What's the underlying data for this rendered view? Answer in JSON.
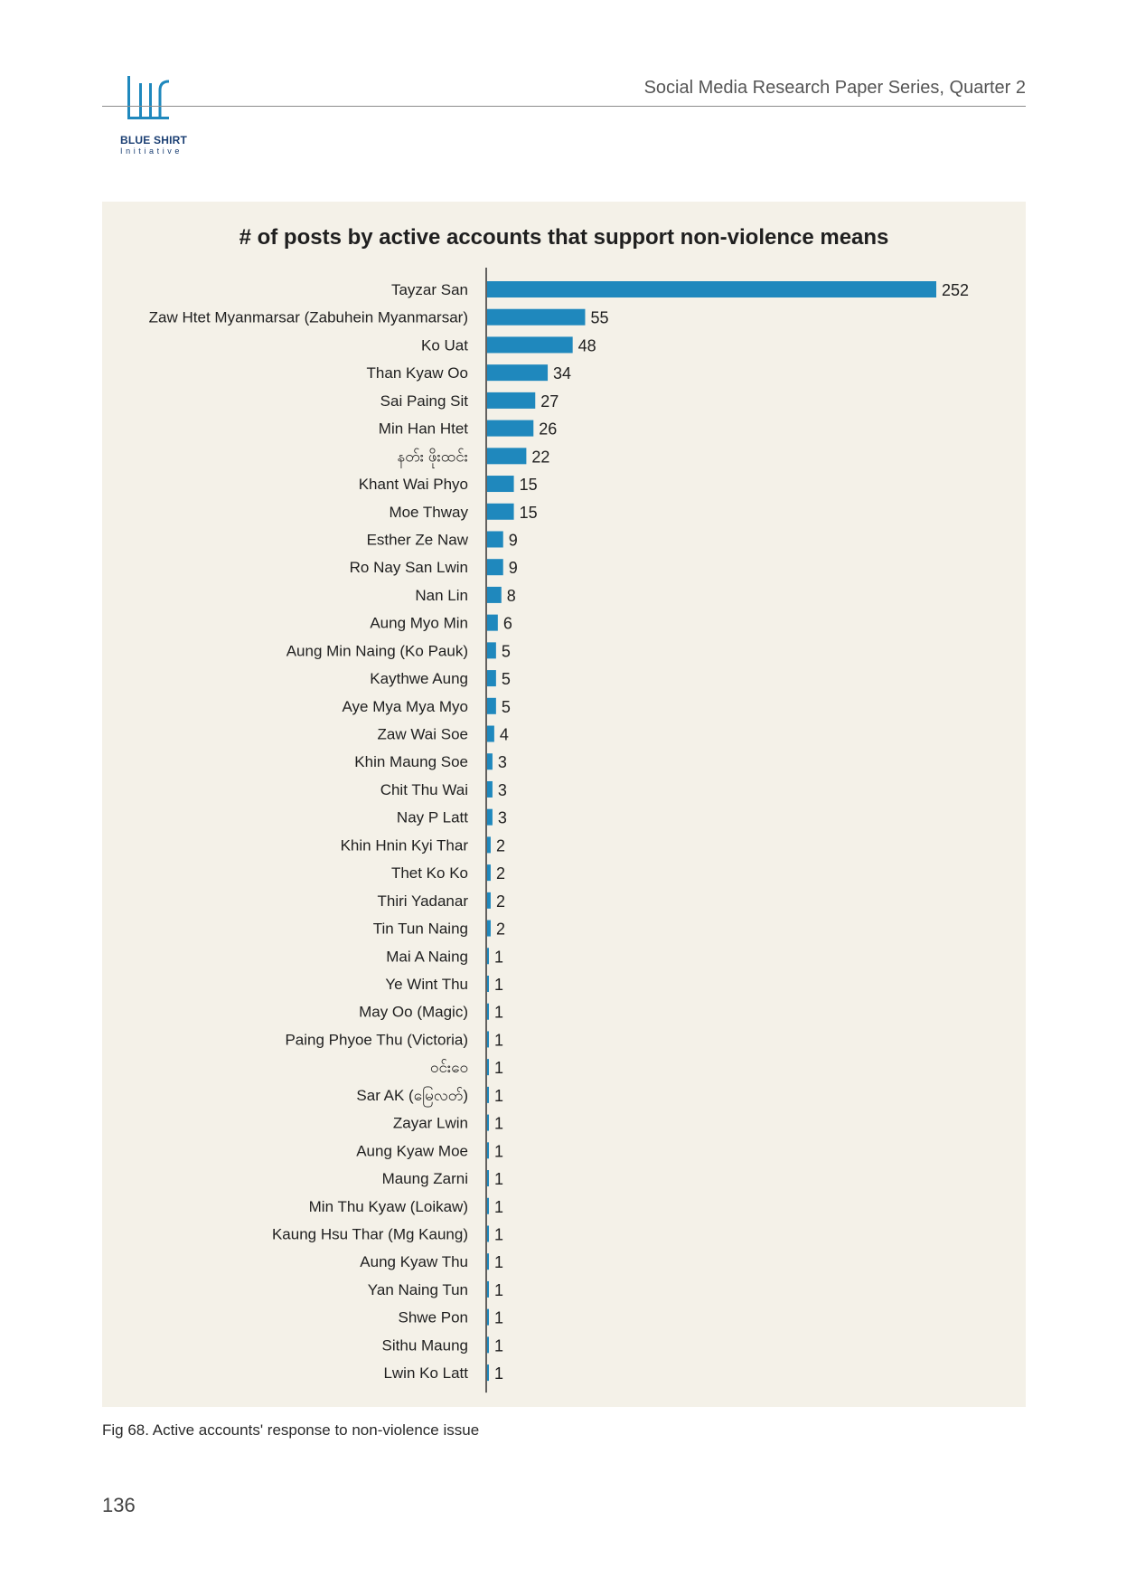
{
  "header": {
    "series_title": "Social Media Research Paper Series, Quarter 2",
    "logo_name": "BLUE SHIRT",
    "logo_sub": "Initiative"
  },
  "colors": {
    "bar": "#1f88bd",
    "panel_background": "#f4f1e8",
    "logo": "#1f88bd"
  },
  "chart_data": {
    "type": "bar",
    "orientation": "horizontal",
    "title": "# of posts by active accounts that support non-violence means",
    "xlabel": "",
    "ylabel": "",
    "grid": false,
    "legend": "none",
    "xlim": [
      0,
      252
    ],
    "categories": [
      "Tayzar San",
      "Zaw Htet Myanmarsar (Zabuhein Myanmarsar)",
      "Ko Uat",
      "Than Kyaw Oo",
      "Sai Paing Sit",
      "Min Han Htet",
      "နတ်း ဖိုးထင်း",
      "Khant Wai Phyo",
      "Moe Thway",
      "Esther Ze Naw",
      "Ro Nay San Lwin",
      "Nan Lin",
      "Aung Myo Min",
      "Aung Min Naing (Ko Pauk)",
      "Kaythwe Aung",
      "Aye Mya Mya Myo",
      "Zaw Wai Soe",
      "Khin Maung Soe",
      "Chit Thu Wai",
      "Nay P Latt",
      "Khin Hnin Kyi Thar",
      "Thet Ko Ko",
      "Thiri Yadanar",
      "Tin Tun Naing",
      "Mai A Naing",
      "Ye Wint Thu",
      "May Oo (Magic)",
      "Paing Phyoe Thu (Victoria)",
      "ဝင်းဝေ",
      "Sar AK (မြေလတ်)",
      "Zayar Lwin",
      "Aung Kyaw Moe",
      "Maung Zarni",
      "Min Thu Kyaw (Loikaw)",
      "Kaung Hsu Thar (Mg Kaung)",
      "Aung Kyaw Thu",
      "Yan Naing Tun",
      "Shwe Pon",
      "Sithu Maung",
      "Lwin Ko Latt"
    ],
    "values": [
      252,
      55,
      48,
      34,
      27,
      26,
      22,
      15,
      15,
      9,
      9,
      8,
      6,
      5,
      5,
      5,
      4,
      3,
      3,
      3,
      2,
      2,
      2,
      2,
      1,
      1,
      1,
      1,
      1,
      1,
      1,
      1,
      1,
      1,
      1,
      1,
      1,
      1,
      1,
      1
    ]
  },
  "caption": "Fig 68. Active accounts' response to non-violence issue",
  "page_number": "136"
}
